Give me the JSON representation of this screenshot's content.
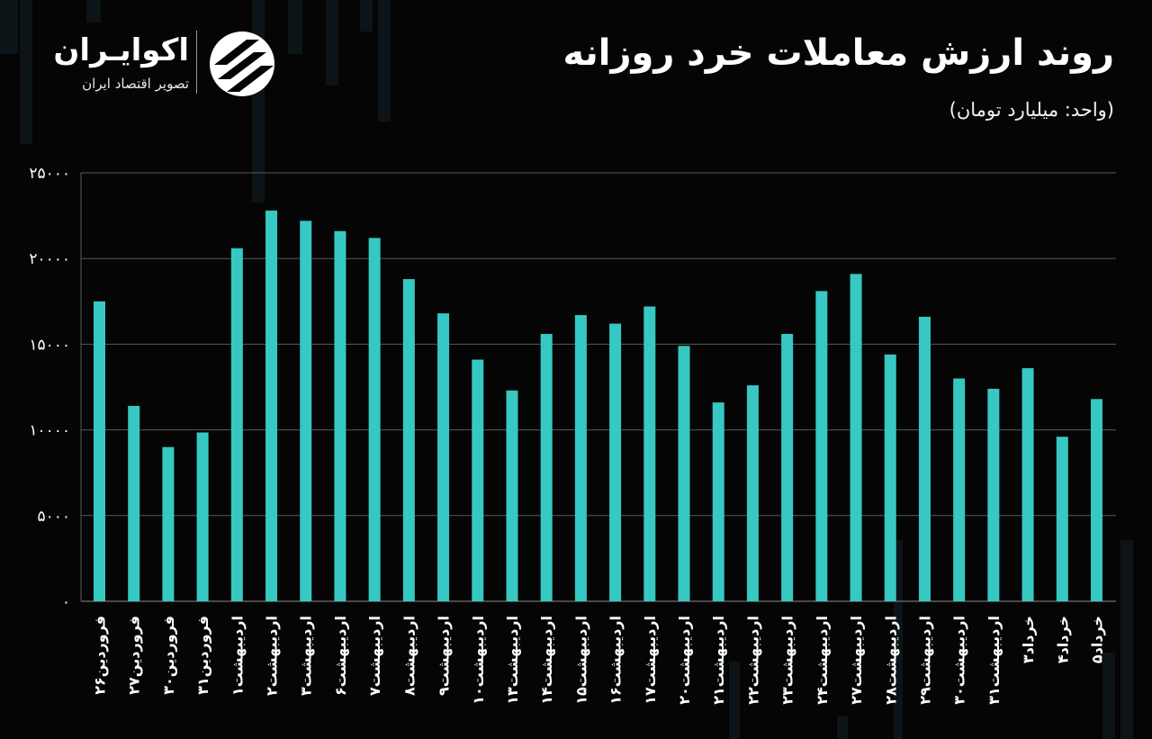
{
  "header": {
    "title": "روند ارزش معاملات خرد روزانه",
    "subtitle": "(واحد: میلیارد تومان)"
  },
  "brand": {
    "name": "اکوایـران",
    "tagline": "تصویر اقتصاد ایران",
    "logo_icon": "ekoiran-logo-icon"
  },
  "colors": {
    "background": "#050505",
    "bar": "#37c8c3",
    "grid": "#5a5a5a",
    "text": "#ffffff"
  },
  "chart_data": {
    "type": "bar",
    "title": "روند ارزش معاملات خرد روزانه",
    "ylabel": "",
    "xlabel": "",
    "ylim": [
      0,
      25000
    ],
    "grid": true,
    "ytick_values": [
      0,
      5000,
      10000,
      15000,
      20000,
      25000
    ],
    "ytick_labels": [
      "0",
      "5000",
      "10000",
      "15000",
      "20000",
      "25000"
    ],
    "categories": [
      "فروردین۲۶",
      "فروردین۲۷",
      "فروردین۳۰",
      "فروردین۳۱",
      "اردیبهشت۱",
      "اردیبهشت۲",
      "اردیبهشت۳",
      "اردیبهشت۶",
      "اردیبهشت۷",
      "اردیبهشت۸",
      "اردیبهشت۹",
      "اردیبهشت۱۰",
      "اردیبهشت۱۳",
      "اردیبهشت۱۴",
      "اردیبهشت۱۵",
      "اردیبهشت۱۶",
      "اردیبهشت۱۷",
      "اردیبهشت۲۰",
      "اردیبهشت۲۱",
      "اردیبهشت۲۲",
      "اردیبهشت۲۳",
      "اردیبهشت۲۴",
      "اردیبهشت۲۷",
      "اردیبهشت۲۸",
      "اردیبهشت۲۹",
      "اردیبهشت۳۰",
      "اردیبهشت۳۱",
      "خرداد۳",
      "خرداد۴",
      "خرداد۵"
    ],
    "values": [
      17500,
      11400,
      9000,
      9850,
      20600,
      22800,
      22200,
      21600,
      21200,
      18800,
      16800,
      14100,
      12300,
      15600,
      16700,
      16200,
      17200,
      14900,
      11600,
      12600,
      15600,
      18100,
      19100,
      14400,
      16600,
      13000,
      12400,
      13600,
      9600,
      11800
    ]
  }
}
